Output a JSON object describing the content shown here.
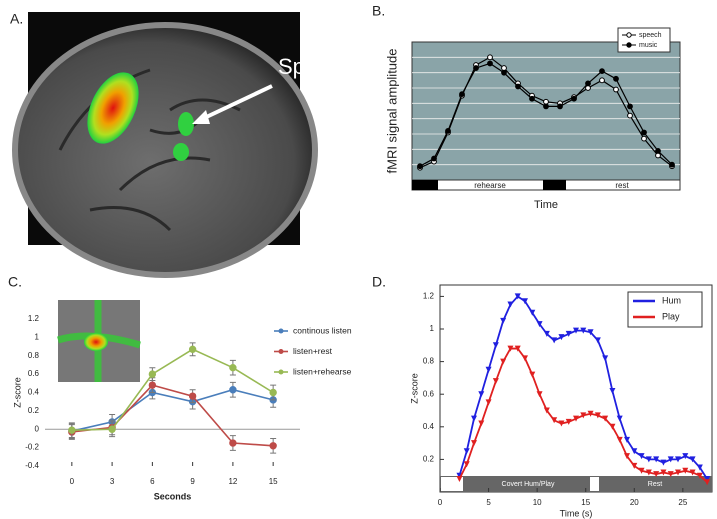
{
  "panel_a": {
    "label": "A.",
    "annotation": "Spt"
  },
  "chart_data": [
    {
      "type": "line",
      "label": "B.",
      "xlabel": "Time",
      "ylabel": "fMRI signal amplitude",
      "categories": [
        null,
        null,
        null,
        null,
        null,
        null,
        null,
        null,
        null,
        null,
        null,
        null,
        null,
        null,
        null,
        null,
        null,
        null,
        null
      ],
      "series": [
        {
          "name": "speech",
          "color": "#000000",
          "marker_fill": "#ffffff",
          "values": [
            0.8,
            1.2,
            3.1,
            5.5,
            7.5,
            8.0,
            7.3,
            6.3,
            5.5,
            5.1,
            5.0,
            5.4,
            6.0,
            6.5,
            5.9,
            4.2,
            2.7,
            1.6,
            0.9
          ]
        },
        {
          "name": "music",
          "color": "#000000",
          "marker_fill": "#000000",
          "values": [
            0.9,
            1.4,
            3.2,
            5.6,
            7.3,
            7.6,
            7.0,
            6.1,
            5.3,
            4.8,
            4.8,
            5.3,
            6.3,
            7.1,
            6.6,
            4.8,
            3.1,
            1.9,
            1.0
          ]
        }
      ],
      "ylim": [
        0,
        9
      ],
      "grid": true,
      "plot_color": "#8aa4a8",
      "phases": [
        "rehearse",
        "rest"
      ]
    },
    {
      "type": "line",
      "label": "C.",
      "xlabel": "Seconds",
      "ylabel": "Z-score",
      "x": [
        0,
        3,
        6,
        9,
        12,
        15
      ],
      "xlim": [
        -2,
        17
      ],
      "xticks": [
        0,
        3,
        6,
        9,
        12,
        15
      ],
      "ylim": [
        -0.4,
        1.2
      ],
      "yticks": [
        -0.4,
        -0.2,
        0,
        0.2,
        0.4,
        0.6,
        0.8,
        1,
        1.2
      ],
      "series": [
        {
          "name": "continous listen",
          "color": "#4a7ebb",
          "values": [
            -0.02,
            0.08,
            0.4,
            0.3,
            0.43,
            0.32
          ],
          "errors": [
            0.08,
            0.08,
            0.07,
            0.08,
            0.08,
            0.08
          ]
        },
        {
          "name": "listen+rest",
          "color": "#be4b48",
          "values": [
            -0.03,
            0.02,
            0.48,
            0.36,
            -0.15,
            -0.18
          ],
          "errors": [
            0.08,
            0.08,
            0.08,
            0.07,
            0.08,
            0.08
          ]
        },
        {
          "name": "listen+rehearse",
          "color": "#98b954",
          "values": [
            -0.01,
            0.0,
            0.6,
            0.87,
            0.67,
            0.4
          ],
          "errors": [
            0.08,
            0.08,
            0.07,
            0.07,
            0.08,
            0.08
          ]
        }
      ]
    },
    {
      "type": "line",
      "label": "D.",
      "xlabel": "Time (s)",
      "ylabel": "Z-score",
      "x": [
        2,
        2.75,
        3.5,
        4.25,
        5,
        5.75,
        6.5,
        7.25,
        8,
        8.75,
        9.5,
        10.25,
        11,
        11.75,
        12.5,
        13.25,
        14,
        14.75,
        15.5,
        16.25,
        17,
        17.75,
        18.5,
        19.25,
        20,
        20.75,
        21.5,
        22.25,
        23,
        23.75,
        24.5,
        25.25,
        26,
        26.75,
        27.5
      ],
      "xlim": [
        0,
        28
      ],
      "xticks": [
        0,
        5,
        10,
        15,
        20,
        25
      ],
      "ylim": [
        0,
        1.27
      ],
      "yticks": [
        0.2,
        0.4,
        0.6,
        0.8,
        1,
        1.2
      ],
      "series": [
        {
          "name": "Hum",
          "color": "#2020e0",
          "values": [
            0.1,
            0.25,
            0.45,
            0.6,
            0.75,
            0.9,
            1.05,
            1.15,
            1.2,
            1.17,
            1.1,
            1.03,
            0.97,
            0.93,
            0.95,
            0.97,
            0.99,
            0.99,
            0.98,
            0.93,
            0.82,
            0.62,
            0.45,
            0.32,
            0.25,
            0.22,
            0.2,
            0.2,
            0.18,
            0.2,
            0.2,
            0.22,
            0.2,
            0.15,
            0.08
          ]
        },
        {
          "name": "Play",
          "color": "#e02020",
          "values": [
            0.08,
            0.17,
            0.3,
            0.42,
            0.55,
            0.68,
            0.8,
            0.88,
            0.88,
            0.82,
            0.72,
            0.6,
            0.5,
            0.44,
            0.42,
            0.43,
            0.45,
            0.47,
            0.48,
            0.47,
            0.45,
            0.4,
            0.32,
            0.22,
            0.16,
            0.13,
            0.12,
            0.11,
            0.12,
            0.11,
            0.12,
            0.13,
            0.12,
            0.1,
            0.06
          ]
        }
      ],
      "phases": [
        "Covert Hum/Play",
        "Rest"
      ]
    }
  ]
}
